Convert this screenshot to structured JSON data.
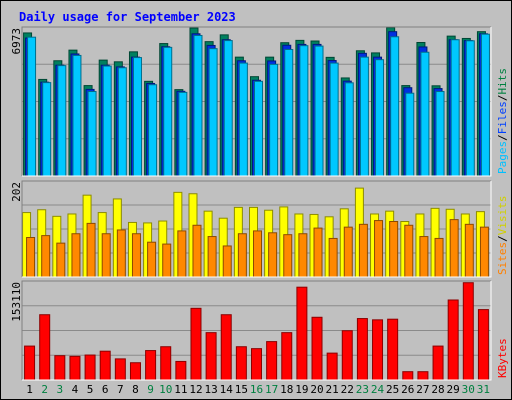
{
  "chart_data": [
    {
      "type": "bar",
      "title": "Daily usage for September 2023",
      "max_label": "6973",
      "ylabels": [
        {
          "text": "Pages",
          "color": "#00c0ff"
        },
        {
          "text": "/",
          "color": "#000000"
        },
        {
          "text": "Files",
          "color": "#0040ff"
        },
        {
          "text": "/",
          "color": "#000000"
        },
        {
          "text": "Hits",
          "color": "#008040"
        }
      ],
      "ylim": [
        0,
        6973
      ],
      "categories": [
        "1",
        "2",
        "3",
        "4",
        "5",
        "6",
        "7",
        "8",
        "9",
        "10",
        "11",
        "12",
        "13",
        "14",
        "15",
        "16",
        "17",
        "18",
        "19",
        "20",
        "21",
        "22",
        "23",
        "24",
        "25",
        "26",
        "27",
        "28",
        "29",
        "30",
        "31"
      ],
      "weekend_days": [
        2,
        3,
        9,
        10,
        16,
        17,
        23,
        24,
        30,
        31
      ],
      "series": [
        {
          "name": "Hits",
          "color": "#00805f",
          "values": [
            6740,
            4550,
            5430,
            5930,
            4260,
            5460,
            5380,
            5850,
            4460,
            6240,
            4070,
            6970,
            6330,
            6650,
            5600,
            4680,
            5600,
            6280,
            6390,
            6360,
            5590,
            4620,
            5900,
            5800,
            6990,
            4260,
            6290,
            4250,
            6590,
            6480,
            6800
          ]
        },
        {
          "name": "Files",
          "color": "#0030e0",
          "values": [
            6500,
            4420,
            5220,
            5750,
            4080,
            5220,
            5140,
            5600,
            4360,
            6090,
            3990,
            6700,
            6150,
            6420,
            5430,
            4510,
            5420,
            6160,
            6200,
            6200,
            5440,
            4470,
            5780,
            5600,
            6800,
            4160,
            6080,
            4120,
            6420,
            6380,
            6700
          ]
        },
        {
          "name": "Pages",
          "color": "#00c8ff",
          "values": [
            6540,
            4400,
            5200,
            5680,
            3980,
            5180,
            5100,
            5580,
            4300,
            6060,
            3940,
            6620,
            6000,
            6380,
            5320,
            4460,
            5260,
            5960,
            6140,
            6120,
            5320,
            4390,
            5600,
            5480,
            6560,
            3900,
            5830,
            3980,
            6420,
            6370,
            6680
          ]
        }
      ]
    },
    {
      "type": "bar",
      "max_label": "202",
      "ylabels": [
        {
          "text": "Sites",
          "color": "#ff8000"
        },
        {
          "text": "/",
          "color": "#000000"
        },
        {
          "text": "Visits",
          "color": "#d0d000"
        }
      ],
      "ylim": [
        0,
        202
      ],
      "series": [
        {
          "name": "Visits",
          "color": "#ffff00",
          "values": [
            137,
            143,
            129,
            134,
            174,
            137,
            166,
            116,
            115,
            119,
            180,
            177,
            140,
            125,
            148,
            148,
            142,
            149,
            134,
            133,
            128,
            145,
            189,
            134,
            140,
            118,
            134,
            146,
            144,
            134,
            139
          ]
        },
        {
          "name": "Sites",
          "color": "#ff8800",
          "values": [
            84,
            88,
            72,
            92,
            114,
            92,
            100,
            92,
            74,
            70,
            98,
            110,
            86,
            66,
            92,
            98,
            94,
            90,
            92,
            104,
            82,
            106,
            112,
            120,
            118,
            110,
            86,
            82,
            122,
            112,
            106
          ]
        }
      ]
    },
    {
      "type": "bar",
      "max_label": "153110",
      "ylabels": [
        {
          "text": "KBytes",
          "color": "#ff0000"
        }
      ],
      "ylim": [
        0,
        153110
      ],
      "series": [
        {
          "name": "KBytes",
          "color": "#ff0000",
          "values": [
            53000,
            102000,
            38000,
            37000,
            39000,
            45000,
            33000,
            27000,
            46000,
            52000,
            29000,
            112000,
            74000,
            102000,
            52000,
            49000,
            60000,
            74000,
            145000,
            98000,
            42000,
            77000,
            96000,
            94000,
            95000,
            13000,
            13000,
            53000,
            125000,
            152000,
            110000
          ]
        }
      ]
    }
  ]
}
